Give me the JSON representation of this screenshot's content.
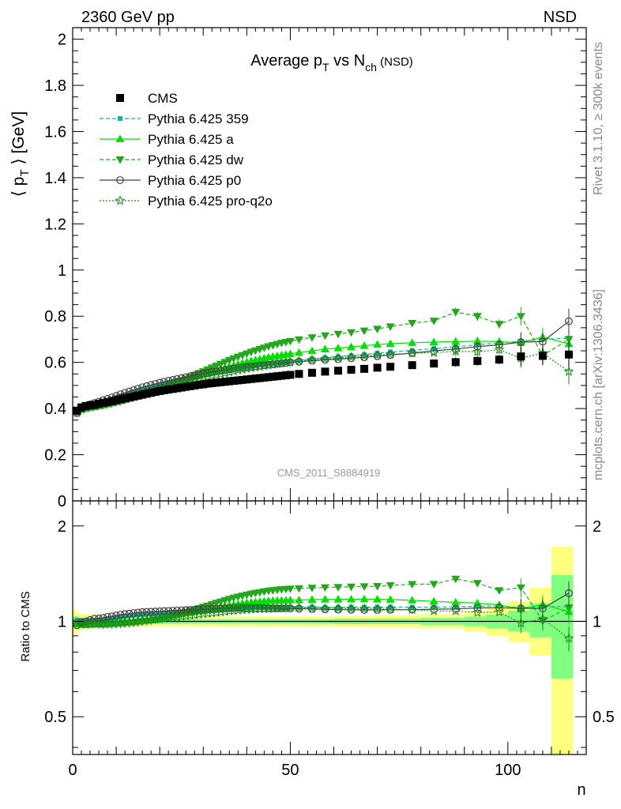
{
  "header": {
    "left": "2360 GeV pp",
    "right": "NSD"
  },
  "side_text": {
    "rivet": "Rivet 3.1.10, ≥ 300k events",
    "mcplots": "mcplots.cern.ch [arXiv:1306.3436]"
  },
  "analysis_id": "CMS_2011_S8884919",
  "chart_data": [
    {
      "type": "scatter",
      "title": {
        "main": "Average p",
        "sub1": "T",
        "mid": " vs N",
        "sub2": "ch",
        "tail": " (NSD)"
      },
      "ylabel": {
        "pre": "⟨ p",
        "sub": "T",
        "post": " ⟩ [GeV]"
      },
      "xlabel": "n",
      "xlim": [
        0,
        118
      ],
      "ylim": [
        0,
        2.05
      ],
      "x_ticks": [
        "0",
        "50",
        "100"
      ],
      "y_ticks": [
        "0",
        "0.2",
        "0.4",
        "0.6",
        "0.8",
        "1",
        "1.2",
        "1.4",
        "1.6",
        "1.8",
        "2"
      ],
      "legend_position": "top-left",
      "series": [
        {
          "name": "CMS",
          "color": "#000000",
          "marker": "square",
          "line": "none",
          "x": [
            1,
            2,
            3,
            4,
            5,
            6,
            7,
            8,
            9,
            10,
            11,
            12,
            13,
            14,
            15,
            16,
            17,
            18,
            19,
            20,
            21,
            22,
            23,
            24,
            25,
            26,
            27,
            28,
            29,
            30,
            31,
            32,
            33,
            34,
            35,
            36,
            37,
            38,
            39,
            40,
            41,
            42,
            43,
            44,
            45,
            46,
            47,
            48,
            49,
            50,
            52,
            55,
            58,
            61,
            64,
            67,
            70,
            73,
            78,
            83,
            88,
            93,
            98,
            103,
            108,
            114
          ],
          "y": [
            0.391,
            0.405,
            0.411,
            0.414,
            0.416,
            0.421,
            0.425,
            0.428,
            0.432,
            0.436,
            0.44,
            0.444,
            0.448,
            0.452,
            0.456,
            0.46,
            0.464,
            0.468,
            0.472,
            0.476,
            0.479,
            0.482,
            0.485,
            0.488,
            0.491,
            0.494,
            0.497,
            0.5,
            0.503,
            0.505,
            0.508,
            0.51,
            0.512,
            0.514,
            0.516,
            0.518,
            0.52,
            0.522,
            0.524,
            0.526,
            0.528,
            0.53,
            0.532,
            0.534,
            0.536,
            0.538,
            0.54,
            0.542,
            0.544,
            0.546,
            0.55,
            0.555,
            0.56,
            0.564,
            0.568,
            0.572,
            0.577,
            0.581,
            0.588,
            0.595,
            0.601,
            0.606,
            0.612,
            0.626,
            0.628,
            0.634
          ]
        },
        {
          "name": "Pythia 6.425 359",
          "color": "#17b3a0",
          "marker": "small-square",
          "line": "dashed",
          "x": [
            1,
            2,
            3,
            4,
            5,
            6,
            7,
            8,
            9,
            10,
            11,
            12,
            13,
            14,
            15,
            16,
            17,
            18,
            19,
            20,
            21,
            22,
            23,
            24,
            25,
            26,
            27,
            28,
            29,
            30,
            31,
            32,
            33,
            34,
            35,
            36,
            37,
            38,
            39,
            40,
            41,
            42,
            43,
            44,
            45,
            46,
            47,
            48,
            49,
            50,
            52,
            55,
            58,
            61,
            64,
            67,
            70,
            73,
            78,
            83,
            88,
            93,
            98,
            103,
            108,
            114
          ],
          "y": [
            0.395,
            0.406,
            0.412,
            0.417,
            0.42,
            0.425,
            0.43,
            0.436,
            0.442,
            0.448,
            0.454,
            0.46,
            0.466,
            0.472,
            0.477,
            0.483,
            0.488,
            0.493,
            0.498,
            0.503,
            0.508,
            0.513,
            0.518,
            0.522,
            0.526,
            0.53,
            0.534,
            0.538,
            0.542,
            0.546,
            0.55,
            0.554,
            0.557,
            0.561,
            0.564,
            0.567,
            0.57,
            0.573,
            0.576,
            0.579,
            0.582,
            0.585,
            0.588,
            0.59,
            0.593,
            0.596,
            0.598,
            0.6,
            0.602,
            0.605,
            0.609,
            0.615,
            0.62,
            0.625,
            0.63,
            0.634,
            0.64,
            0.645,
            0.652,
            0.66,
            0.668,
            0.676,
            0.684,
            0.692,
            0.7,
            0.705
          ]
        },
        {
          "name": "Pythia 6.425 a",
          "color": "#00e000",
          "marker": "triangle-up",
          "line": "solid",
          "x": [
            1,
            2,
            3,
            4,
            5,
            6,
            7,
            8,
            9,
            10,
            11,
            12,
            13,
            14,
            15,
            16,
            17,
            18,
            19,
            20,
            21,
            22,
            23,
            24,
            25,
            26,
            27,
            28,
            29,
            30,
            31,
            32,
            33,
            34,
            35,
            36,
            37,
            38,
            39,
            40,
            41,
            42,
            43,
            44,
            45,
            46,
            47,
            48,
            49,
            50,
            52,
            55,
            58,
            61,
            64,
            67,
            70,
            73,
            78,
            83,
            88,
            93,
            98,
            103,
            108,
            114
          ],
          "y": [
            0.385,
            0.396,
            0.401,
            0.405,
            0.408,
            0.412,
            0.416,
            0.42,
            0.425,
            0.43,
            0.435,
            0.44,
            0.446,
            0.452,
            0.458,
            0.464,
            0.47,
            0.476,
            0.482,
            0.488,
            0.494,
            0.5,
            0.506,
            0.512,
            0.518,
            0.524,
            0.53,
            0.536,
            0.542,
            0.548,
            0.554,
            0.56,
            0.566,
            0.571,
            0.577,
            0.582,
            0.587,
            0.592,
            0.597,
            0.602,
            0.606,
            0.61,
            0.614,
            0.618,
            0.622,
            0.625,
            0.628,
            0.631,
            0.634,
            0.637,
            0.642,
            0.65,
            0.657,
            0.662,
            0.667,
            0.672,
            0.677,
            0.681,
            0.685,
            0.688,
            0.69,
            0.692,
            0.69,
            0.685,
            0.71,
            0.68
          ]
        },
        {
          "name": "Pythia 6.425 dw",
          "color": "#22a81a",
          "marker": "triangle-down",
          "line": "dashed",
          "x": [
            1,
            2,
            3,
            4,
            5,
            6,
            7,
            8,
            9,
            10,
            11,
            12,
            13,
            14,
            15,
            16,
            17,
            18,
            19,
            20,
            21,
            22,
            23,
            24,
            25,
            26,
            27,
            28,
            29,
            30,
            31,
            32,
            33,
            34,
            35,
            36,
            37,
            38,
            39,
            40,
            41,
            42,
            43,
            44,
            45,
            46,
            47,
            48,
            49,
            50,
            52,
            55,
            58,
            61,
            64,
            67,
            70,
            73,
            78,
            83,
            88,
            93,
            98,
            103,
            108,
            114
          ],
          "y": [
            0.388,
            0.398,
            0.403,
            0.406,
            0.408,
            0.411,
            0.414,
            0.418,
            0.422,
            0.426,
            0.431,
            0.436,
            0.441,
            0.446,
            0.452,
            0.458,
            0.464,
            0.47,
            0.477,
            0.484,
            0.491,
            0.498,
            0.505,
            0.513,
            0.521,
            0.529,
            0.537,
            0.545,
            0.553,
            0.561,
            0.569,
            0.577,
            0.585,
            0.593,
            0.601,
            0.609,
            0.617,
            0.624,
            0.631,
            0.638,
            0.645,
            0.651,
            0.657,
            0.663,
            0.669,
            0.674,
            0.679,
            0.684,
            0.688,
            0.692,
            0.699,
            0.708,
            0.716,
            0.723,
            0.73,
            0.737,
            0.745,
            0.755,
            0.77,
            0.78,
            0.818,
            0.8,
            0.766,
            0.8,
            0.63,
            0.7
          ]
        },
        {
          "name": "Pythia 6.425 p0",
          "color": "#404040",
          "marker": "open-circle",
          "line": "solid",
          "x": [
            1,
            2,
            3,
            4,
            5,
            6,
            7,
            8,
            9,
            10,
            11,
            12,
            13,
            14,
            15,
            16,
            17,
            18,
            19,
            20,
            21,
            22,
            23,
            24,
            25,
            26,
            27,
            28,
            29,
            30,
            31,
            32,
            33,
            34,
            35,
            36,
            37,
            38,
            39,
            40,
            41,
            42,
            43,
            44,
            45,
            46,
            47,
            48,
            49,
            50,
            52,
            55,
            58,
            61,
            64,
            67,
            70,
            73,
            78,
            83,
            88,
            93,
            98,
            103,
            108,
            114
          ],
          "y": [
            0.38,
            0.403,
            0.411,
            0.418,
            0.424,
            0.43,
            0.436,
            0.442,
            0.448,
            0.455,
            0.462,
            0.468,
            0.474,
            0.48,
            0.486,
            0.492,
            0.497,
            0.502,
            0.507,
            0.512,
            0.516,
            0.52,
            0.524,
            0.528,
            0.532,
            0.536,
            0.54,
            0.544,
            0.548,
            0.552,
            0.555,
            0.558,
            0.561,
            0.564,
            0.567,
            0.57,
            0.573,
            0.576,
            0.578,
            0.58,
            0.582,
            0.584,
            0.586,
            0.588,
            0.59,
            0.592,
            0.594,
            0.596,
            0.598,
            0.6,
            0.603,
            0.607,
            0.611,
            0.614,
            0.618,
            0.622,
            0.627,
            0.632,
            0.64,
            0.65,
            0.658,
            0.668,
            0.676,
            0.688,
            0.69,
            0.778
          ]
        },
        {
          "name": "Pythia 6.425 pro-q2o",
          "color": "#1a8a1a",
          "marker": "open-star",
          "line": "dotted",
          "x": [
            1,
            2,
            3,
            4,
            5,
            6,
            7,
            8,
            9,
            10,
            11,
            12,
            13,
            14,
            15,
            16,
            17,
            18,
            19,
            20,
            21,
            22,
            23,
            24,
            25,
            26,
            27,
            28,
            29,
            30,
            31,
            32,
            33,
            34,
            35,
            36,
            37,
            38,
            39,
            40,
            41,
            42,
            43,
            44,
            45,
            46,
            47,
            48,
            49,
            50,
            52,
            55,
            58,
            61,
            64,
            67,
            70,
            73,
            78,
            83,
            88,
            93,
            98,
            103,
            108,
            114
          ],
          "y": [
            0.382,
            0.396,
            0.402,
            0.406,
            0.41,
            0.414,
            0.418,
            0.422,
            0.427,
            0.432,
            0.437,
            0.442,
            0.447,
            0.452,
            0.458,
            0.464,
            0.469,
            0.474,
            0.479,
            0.484,
            0.489,
            0.494,
            0.499,
            0.504,
            0.509,
            0.514,
            0.519,
            0.524,
            0.529,
            0.534,
            0.538,
            0.542,
            0.546,
            0.55,
            0.554,
            0.558,
            0.562,
            0.566,
            0.57,
            0.573,
            0.576,
            0.579,
            0.582,
            0.585,
            0.588,
            0.591,
            0.594,
            0.597,
            0.6,
            0.602,
            0.606,
            0.611,
            0.615,
            0.619,
            0.623,
            0.627,
            0.631,
            0.635,
            0.64,
            0.642,
            0.648,
            0.646,
            0.655,
            0.618,
            0.64,
            0.56
          ]
        }
      ]
    },
    {
      "type": "scatter",
      "ylabel": "Ratio to CMS",
      "xlabel": "n",
      "xlim": [
        0,
        118
      ],
      "ylim": [
        0.38,
        2.4
      ],
      "y_scale": "log",
      "y_ticks_left": [
        "0.5",
        "1",
        "2"
      ],
      "y_ticks_right": [
        "0.5",
        "1",
        "2"
      ],
      "x_ticks": [
        "0",
        "50",
        "100"
      ],
      "uncertainty_bands": {
        "colors": {
          "outer": "#ffff80",
          "inner": "#80ff80"
        },
        "x_edges": [
          0,
          1,
          2,
          5,
          10,
          20,
          30,
          40,
          50,
          60,
          70,
          80,
          90,
          95,
          100,
          105,
          110,
          115
        ],
        "outer_low": [
          0.91,
          0.94,
          0.95,
          0.96,
          0.965,
          0.965,
          0.965,
          0.965,
          0.965,
          0.96,
          0.955,
          0.95,
          0.93,
          0.9,
          0.86,
          0.78,
          0.35,
          0.35
        ],
        "outer_high": [
          1.09,
          1.06,
          1.05,
          1.04,
          1.035,
          1.035,
          1.035,
          1.035,
          1.035,
          1.04,
          1.045,
          1.05,
          1.07,
          1.1,
          1.16,
          1.28,
          1.72,
          2.02
        ],
        "inner_low": [
          0.96,
          0.97,
          0.975,
          0.98,
          0.985,
          0.985,
          0.985,
          0.985,
          0.985,
          0.98,
          0.98,
          0.975,
          0.965,
          0.95,
          0.93,
          0.89,
          0.66,
          0.49
        ],
        "inner_high": [
          1.04,
          1.03,
          1.025,
          1.02,
          1.015,
          1.015,
          1.015,
          1.015,
          1.015,
          1.02,
          1.02,
          1.025,
          1.035,
          1.05,
          1.08,
          1.14,
          1.4,
          1.6
        ]
      }
    }
  ]
}
